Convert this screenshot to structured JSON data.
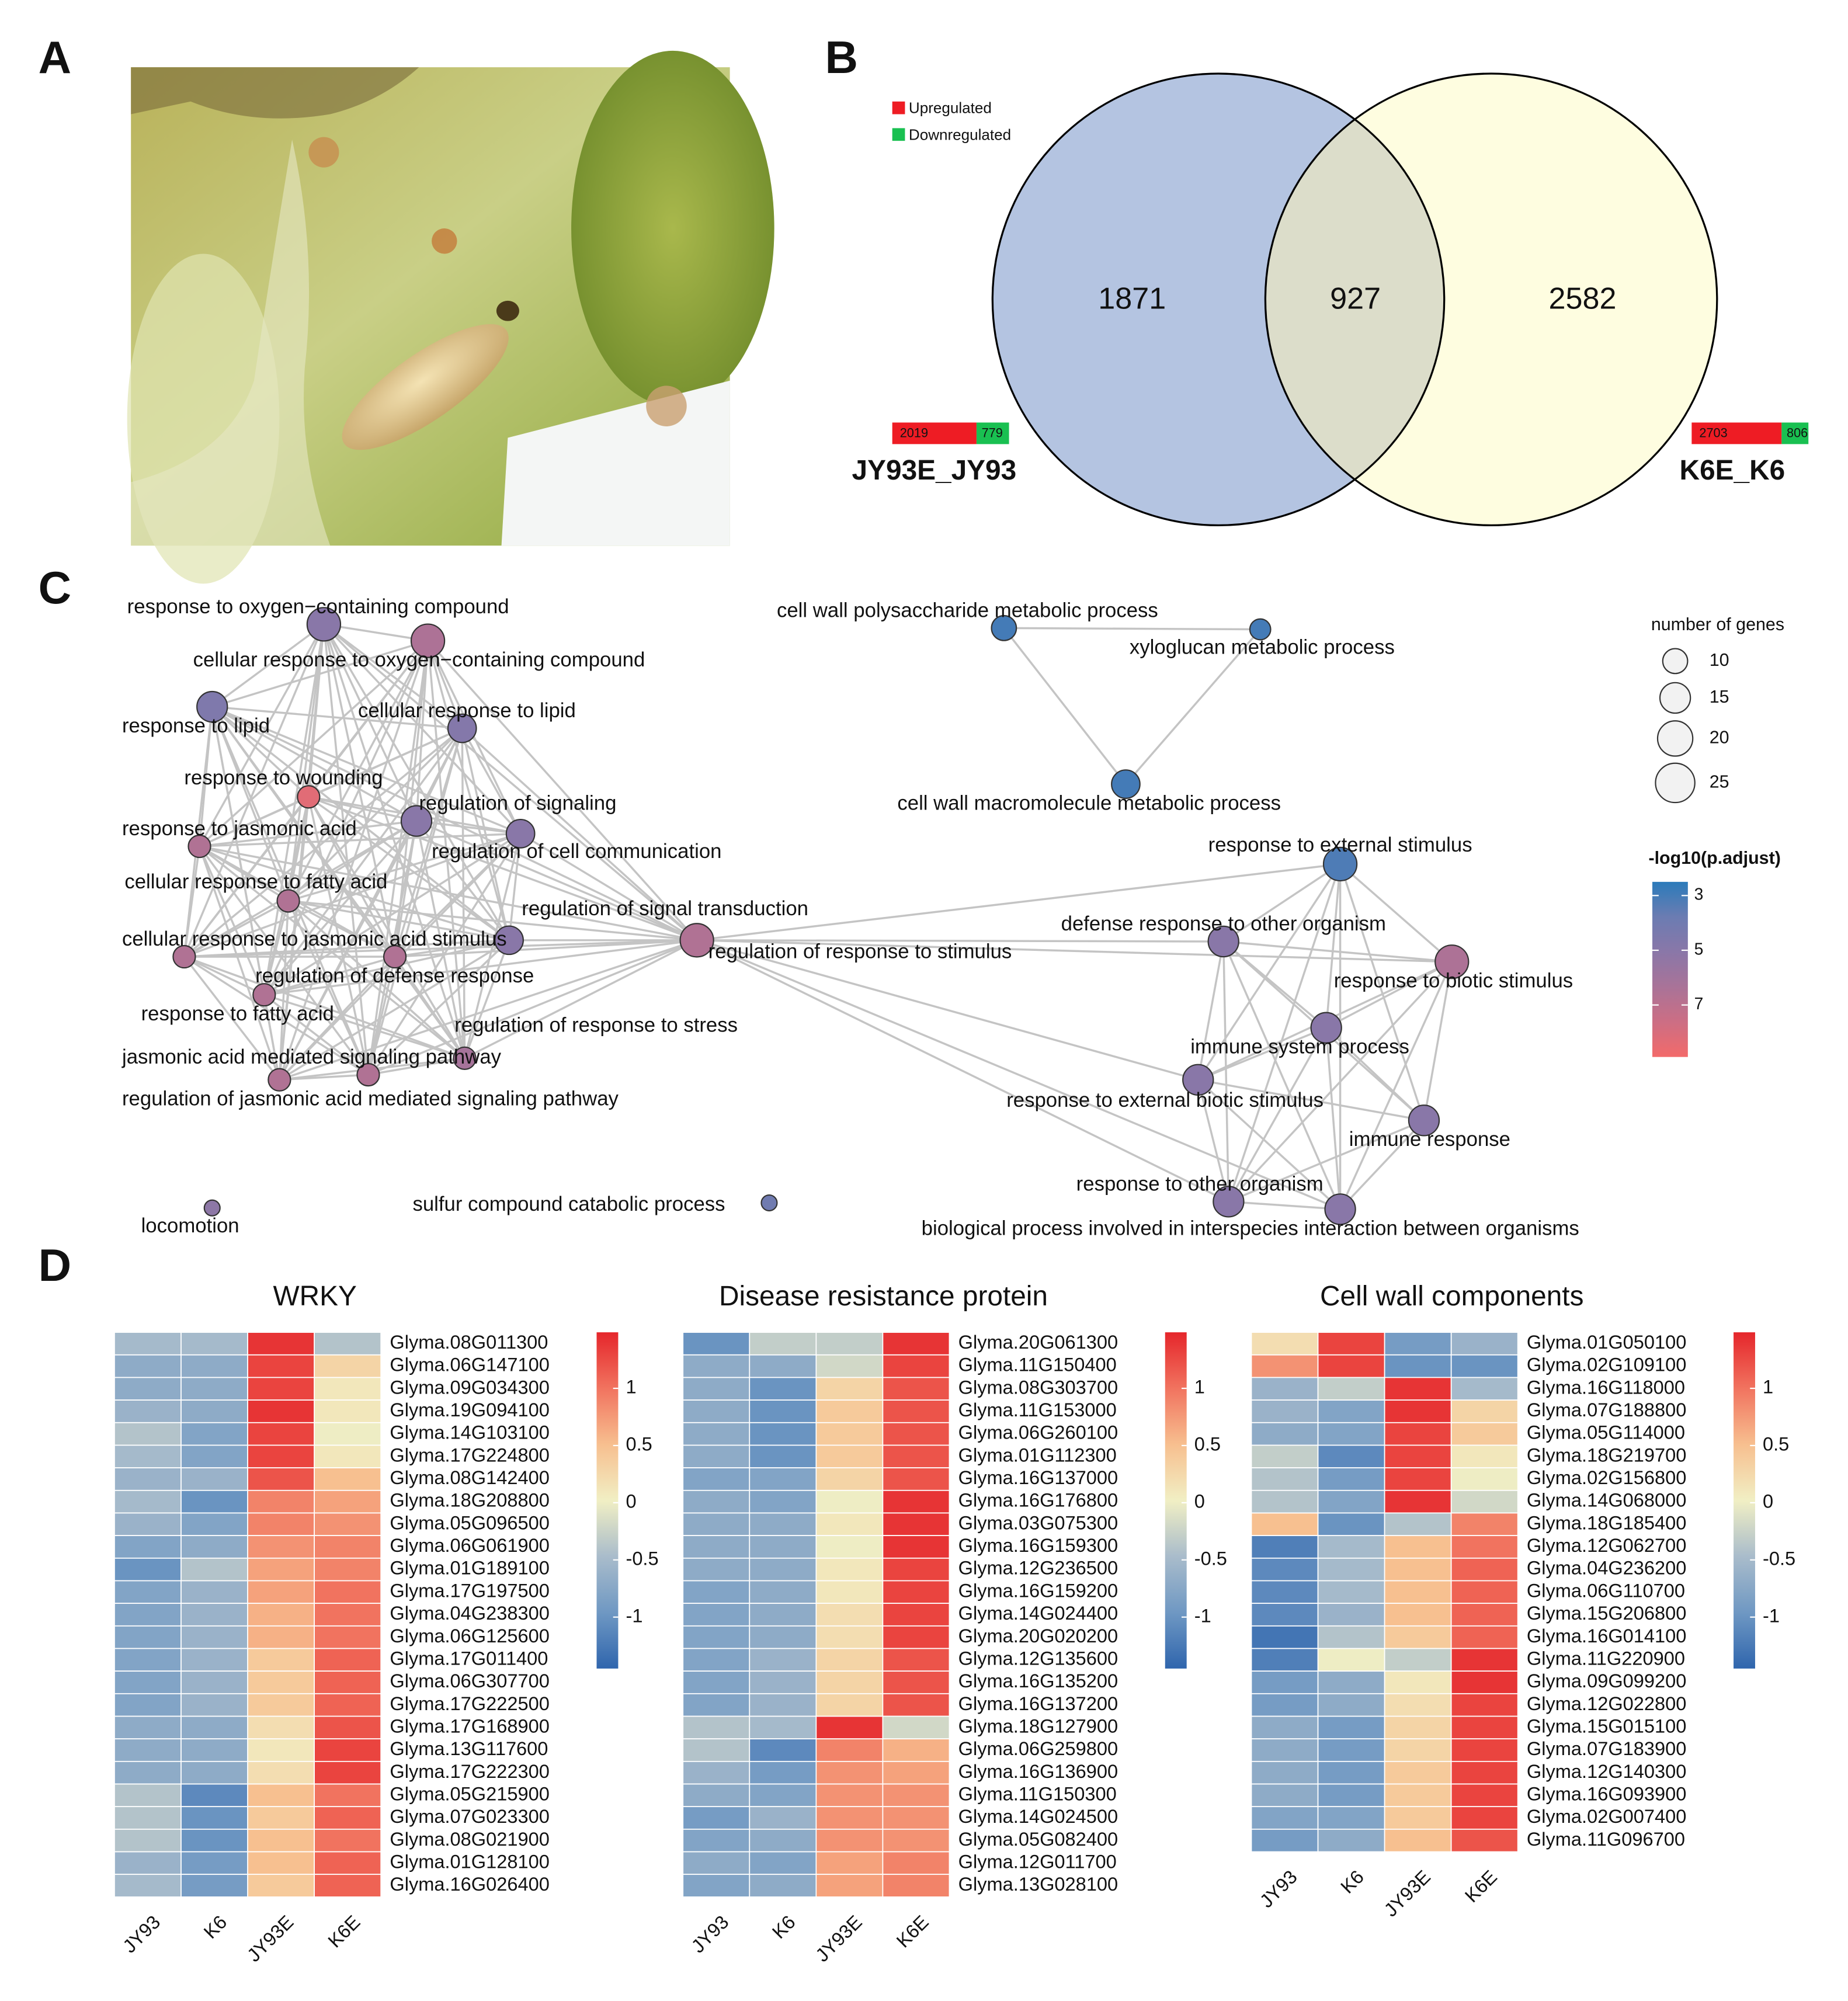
{
  "panel_labels": [
    "A",
    "B",
    "C",
    "D"
  ],
  "chart_data": [
    {
      "type": "venn",
      "legend": [
        "Upregulated",
        "Downregulated"
      ],
      "legend_colors": [
        "#ee1c24",
        "#19c051"
      ],
      "sets": [
        {
          "name": "JY93E_JY93",
          "up": 2019,
          "down": 779,
          "color": "#b4c4e1"
        },
        {
          "name": "K6E_K6",
          "up": 2703,
          "down": 806,
          "color": "#fefde0"
        }
      ],
      "counts": [
        1871,
        927,
        2582
      ],
      "overlap_color": "#dcddca"
    },
    {
      "type": "network",
      "size_title": "number of genes",
      "size_ticks": [
        10,
        15,
        20,
        25
      ],
      "color_title": "-log10(p.adjust)",
      "color_ticks": [
        3,
        5,
        7
      ],
      "colorlim": [
        2.5,
        8.9
      ],
      "colormap": [
        "#2b7bba",
        "#6b7cb2",
        "#8a77a8",
        "#a97398",
        "#cc6e84",
        "#f36a6a"
      ],
      "nodes": [
        {
          "label": "response to oxygen−containing compound",
          "genes": 18,
          "color_value": 5
        },
        {
          "label": "cellular response to oxygen−containing compound",
          "genes": 18,
          "color_value": 6.5
        },
        {
          "label": "response to lipid",
          "genes": 15,
          "color_value": 4.6
        },
        {
          "label": "cellular response to lipid",
          "genes": 13,
          "color_value": 4.8
        },
        {
          "label": "response to wounding",
          "genes": 8,
          "color_value": 8.3
        },
        {
          "label": "regulation of signaling",
          "genes": 15,
          "color_value": 5
        },
        {
          "label": "regulation of cell communication",
          "genes": 13,
          "color_value": 5
        },
        {
          "label": "response to jasmonic acid",
          "genes": 8,
          "color_value": 6.6
        },
        {
          "label": "cellular response to fatty acid",
          "genes": 8,
          "color_value": 6.6
        },
        {
          "label": "regulation of signal transduction",
          "genes": 13,
          "color_value": 5
        },
        {
          "label": "cellular response to jasmonic acid stimulus",
          "genes": 8,
          "color_value": 6.6
        },
        {
          "label": "regulation of defense response",
          "genes": 8,
          "color_value": 6.6
        },
        {
          "label": "regulation of response to stimulus",
          "genes": 18,
          "color_value": 6.6
        },
        {
          "label": "response to fatty acid",
          "genes": 8,
          "color_value": 6.6
        },
        {
          "label": "regulation of response to stress",
          "genes": 8,
          "color_value": 6.2
        },
        {
          "label": "jasmonic acid mediated signaling pathway",
          "genes": 8,
          "color_value": 6.6
        },
        {
          "label": "regulation of jasmonic acid mediated signaling pathway",
          "genes": 8,
          "color_value": 6.6
        },
        {
          "label": "locomotion",
          "genes": 4,
          "color_value": 5.2
        },
        {
          "label": "sulfur compound catabolic process",
          "genes": 4,
          "color_value": 4
        },
        {
          "label": "cell wall polysaccharide metabolic process",
          "genes": 10,
          "color_value": 3
        },
        {
          "label": "xyloglucan metabolic process",
          "genes": 7,
          "color_value": 3
        },
        {
          "label": "cell wall macromolecule metabolic process",
          "genes": 13,
          "color_value": 3
        },
        {
          "label": "response to external stimulus",
          "genes": 18,
          "color_value": 3.2
        },
        {
          "label": "defense response to other organism",
          "genes": 15,
          "color_value": 5
        },
        {
          "label": "response to biotic stimulus",
          "genes": 18,
          "color_value": 6.5
        },
        {
          "label": "immune system process",
          "genes": 15,
          "color_value": 5
        },
        {
          "label": "response to external biotic stimulus",
          "genes": 15,
          "color_value": 5
        },
        {
          "label": "immune response",
          "genes": 15,
          "color_value": 5
        },
        {
          "label": "response to other organism",
          "genes": 15,
          "color_value": 5
        },
        {
          "label": "biological process involved in interspecies interaction between organisms",
          "genes": 15,
          "color_value": 5
        }
      ]
    },
    {
      "type": "heatmap",
      "title": "WRKY",
      "columns": [
        "JY93",
        "K6",
        "JY93E",
        "K6E"
      ],
      "zlim": [
        -1.45,
        1.49
      ],
      "zticks": [
        1,
        0.5,
        0,
        -0.5,
        -1
      ],
      "colormap": [
        "#2f65ad",
        "#6f98c3",
        "#a9bccb",
        "#f1efc4",
        "#f7bf8f",
        "#f1735f",
        "#e5262b"
      ],
      "genes": [
        "Glyma.08G011300",
        "Glyma.06G147100",
        "Glyma.09G034300",
        "Glyma.19G094100",
        "Glyma.14G103100",
        "Glyma.17G224800",
        "Glyma.08G142400",
        "Glyma.18G208800",
        "Glyma.05G096500",
        "Glyma.06G061900",
        "Glyma.01G189100",
        "Glyma.17G197500",
        "Glyma.04G238300",
        "Glyma.06G125600",
        "Glyma.17G011400",
        "Glyma.06G307700",
        "Glyma.17G222500",
        "Glyma.17G168900",
        "Glyma.13G117600",
        "Glyma.17G222300",
        "Glyma.05G215900",
        "Glyma.07G023300",
        "Glyma.08G021900",
        "Glyma.01G128100",
        "Glyma.16G026400"
      ],
      "values": [
        [
          -0.5,
          -0.5,
          1.4,
          -0.4
        ],
        [
          -0.7,
          -0.7,
          1.3,
          0.3
        ],
        [
          -0.7,
          -0.7,
          1.3,
          0.1
        ],
        [
          -0.6,
          -0.7,
          1.4,
          0.1
        ],
        [
          -0.4,
          -0.8,
          1.3,
          0
        ],
        [
          -0.5,
          -0.8,
          1.3,
          0.1
        ],
        [
          -0.6,
          -0.6,
          1.2,
          0.5
        ],
        [
          -0.5,
          -1,
          0.9,
          0.7
        ],
        [
          -0.6,
          -0.8,
          0.9,
          0.8
        ],
        [
          -0.8,
          -0.7,
          0.8,
          0.9
        ],
        [
          -1,
          -0.4,
          0.7,
          0.9
        ],
        [
          -0.8,
          -0.6,
          0.7,
          1
        ],
        [
          -0.8,
          -0.6,
          0.6,
          1
        ],
        [
          -0.8,
          -0.6,
          0.6,
          1
        ],
        [
          -0.8,
          -0.6,
          0.4,
          1.1
        ],
        [
          -0.8,
          -0.6,
          0.4,
          1.1
        ],
        [
          -0.8,
          -0.6,
          0.4,
          1.1
        ],
        [
          -0.7,
          -0.7,
          0.2,
          1.2
        ],
        [
          -0.7,
          -0.7,
          0.1,
          1.3
        ],
        [
          -0.7,
          -0.7,
          0.2,
          1.3
        ],
        [
          -0.4,
          -1.1,
          0.5,
          1
        ],
        [
          -0.4,
          -1,
          0.4,
          1.1
        ],
        [
          -0.4,
          -1,
          0.5,
          1
        ],
        [
          -0.6,
          -0.9,
          0.5,
          1.1
        ],
        [
          -0.5,
          -0.9,
          0.4,
          1.1
        ]
      ]
    },
    {
      "type": "heatmap",
      "title": "Disease resistance protein",
      "columns": [
        "JY93",
        "K6",
        "JY93E",
        "K6E"
      ],
      "zlim": [
        -1.45,
        1.49
      ],
      "zticks": [
        1,
        0.5,
        0,
        -0.5,
        -1
      ],
      "colormap": [
        "#2f65ad",
        "#6f98c3",
        "#a9bccb",
        "#f1efc4",
        "#f7bf8f",
        "#f1735f",
        "#e5262b"
      ],
      "genes": [
        "Glyma.20G061300",
        "Glyma.11G150400",
        "Glyma.08G303700",
        "Glyma.11G153000",
        "Glyma.06G260100",
        "Glyma.01G112300",
        "Glyma.16G137000",
        "Glyma.16G176800",
        "Glyma.03G075300",
        "Glyma.16G159300",
        "Glyma.12G236500",
        "Glyma.16G159200",
        "Glyma.14G024400",
        "Glyma.20G020200",
        "Glyma.12G135600",
        "Glyma.16G135200",
        "Glyma.16G137200",
        "Glyma.18G127900",
        "Glyma.06G259800",
        "Glyma.16G136900",
        "Glyma.11G150300",
        "Glyma.14G024500",
        "Glyma.05G082400",
        "Glyma.12G011700",
        "Glyma.13G028100"
      ],
      "values": [
        [
          -1,
          -0.3,
          -0.3,
          1.4
        ],
        [
          -0.7,
          -0.7,
          -0.2,
          1.3
        ],
        [
          -0.7,
          -1,
          0.3,
          1.2
        ],
        [
          -0.7,
          -1,
          0.4,
          1.2
        ],
        [
          -0.7,
          -1,
          0.4,
          1.2
        ],
        [
          -0.7,
          -1,
          0.4,
          1.2
        ],
        [
          -0.8,
          -0.8,
          0.3,
          1.2
        ],
        [
          -0.7,
          -0.8,
          0,
          1.4
        ],
        [
          -0.7,
          -0.7,
          0.1,
          1.4
        ],
        [
          -0.7,
          -0.7,
          0,
          1.4
        ],
        [
          -0.7,
          -0.7,
          0.1,
          1.3
        ],
        [
          -0.8,
          -0.7,
          0.1,
          1.3
        ],
        [
          -0.8,
          -0.7,
          0.2,
          1.3
        ],
        [
          -0.8,
          -0.7,
          0.2,
          1.3
        ],
        [
          -0.8,
          -0.6,
          0.3,
          1.2
        ],
        [
          -0.8,
          -0.6,
          0.3,
          1.2
        ],
        [
          -0.8,
          -0.6,
          0.3,
          1.2
        ],
        [
          -0.4,
          -0.5,
          1.4,
          -0.2
        ],
        [
          -0.4,
          -1.1,
          0.9,
          0.6
        ],
        [
          -0.6,
          -0.9,
          0.8,
          0.7
        ],
        [
          -0.7,
          -0.8,
          0.8,
          0.8
        ],
        [
          -0.9,
          -0.6,
          0.8,
          0.8
        ],
        [
          -0.8,
          -0.7,
          0.8,
          0.8
        ],
        [
          -0.7,
          -0.8,
          0.7,
          0.9
        ],
        [
          -0.8,
          -0.7,
          0.7,
          0.9
        ]
      ]
    },
    {
      "type": "heatmap",
      "title": "Cell wall components",
      "columns": [
        "JY93",
        "K6",
        "JY93E",
        "K6E"
      ],
      "zlim": [
        -1.45,
        1.49
      ],
      "zticks": [
        1,
        0.5,
        0,
        -0.5,
        -1
      ],
      "colormap": [
        "#2f65ad",
        "#6f98c3",
        "#a9bccb",
        "#f1efc4",
        "#f7bf8f",
        "#f1735f",
        "#e5262b"
      ],
      "genes": [
        "Glyma.01G050100",
        "Glyma.02G109100",
        "Glyma.16G118000",
        "Glyma.07G188800",
        "Glyma.05G114000",
        "Glyma.18G219700",
        "Glyma.02G156800",
        "Glyma.14G068000",
        "Glyma.18G185400",
        "Glyma.12G062700",
        "Glyma.04G236200",
        "Glyma.06G110700",
        "Glyma.15G206800",
        "Glyma.16G014100",
        "Glyma.11G220900",
        "Glyma.09G099200",
        "Glyma.12G022800",
        "Glyma.15G015100",
        "Glyma.07G183900",
        "Glyma.12G140300",
        "Glyma.16G093900",
        "Glyma.02G007400",
        "Glyma.11G096700"
      ],
      "values": [
        [
          0.2,
          1.3,
          -0.9,
          -0.6
        ],
        [
          0.8,
          1.3,
          -1,
          -1
        ],
        [
          -0.6,
          -0.3,
          1.4,
          -0.5
        ],
        [
          -0.6,
          -0.8,
          1.4,
          0.3
        ],
        [
          -0.7,
          -0.8,
          1.3,
          0.4
        ],
        [
          -0.3,
          -1.1,
          1.3,
          0.1
        ],
        [
          -0.4,
          -0.9,
          1.3,
          0
        ],
        [
          -0.4,
          -0.8,
          1.4,
          -0.2
        ],
        [
          0.5,
          -1,
          -0.4,
          0.9
        ],
        [
          -1.2,
          -0.5,
          0.5,
          1
        ],
        [
          -1.1,
          -0.5,
          0.5,
          1.1
        ],
        [
          -1.1,
          -0.5,
          0.5,
          1.1
        ],
        [
          -1.1,
          -0.6,
          0.5,
          1.1
        ],
        [
          -1.3,
          -0.4,
          0.4,
          1.1
        ],
        [
          -1.2,
          0,
          -0.3,
          1.4
        ],
        [
          -0.9,
          -0.7,
          0.1,
          1.4
        ],
        [
          -0.9,
          -0.7,
          0.2,
          1.3
        ],
        [
          -0.7,
          -0.9,
          0.3,
          1.3
        ],
        [
          -0.7,
          -0.9,
          0.3,
          1.3
        ],
        [
          -0.7,
          -0.9,
          0.4,
          1.3
        ],
        [
          -0.7,
          -0.9,
          0.4,
          1.3
        ],
        [
          -0.8,
          -0.8,
          0.4,
          1.3
        ],
        [
          -0.9,
          -0.7,
          0.5,
          1.2
        ]
      ]
    }
  ]
}
